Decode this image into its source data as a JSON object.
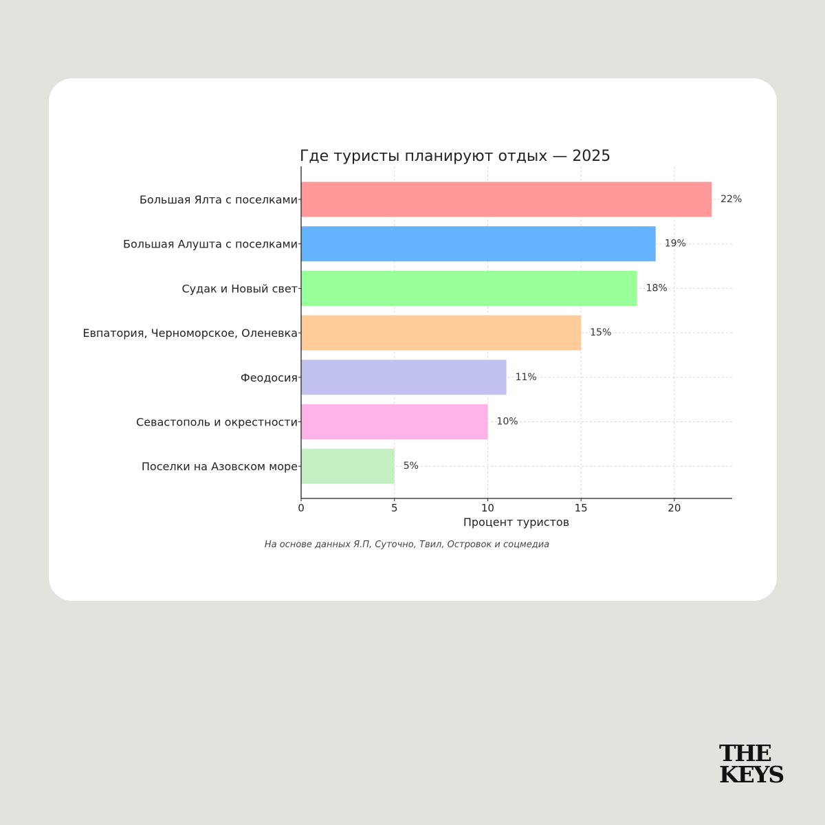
{
  "chart_data": {
    "type": "bar",
    "orientation": "horizontal",
    "title": "Где туристы планируют отдых — 2025",
    "xlabel": "Процент туристов",
    "ylabel": "",
    "categories": [
      "Большая Ялта с поселками",
      "Большая Алушта с поселками",
      "Судак и Новый свет",
      "Евпатория, Черноморское, Оленевка",
      "Феодосия",
      "Севастополь и окрестности",
      "Поселки на Азовском море"
    ],
    "values": [
      22,
      19,
      18,
      15,
      11,
      10,
      5
    ],
    "data_labels": [
      "22%",
      "19%",
      "18%",
      "15%",
      "11%",
      "10%",
      "5%"
    ],
    "colors": [
      "#ff9999",
      "#66b3ff",
      "#99ff99",
      "#ffcc99",
      "#c2c2f0",
      "#ffb3e6",
      "#c2f0c2"
    ],
    "xlim": [
      0,
      23.1
    ],
    "xticks": [
      0,
      5,
      10,
      15,
      20
    ],
    "grid": true,
    "source_note": "На основе данных Я.П, Суточно, Твил, Островок и соцмедиа"
  },
  "brand": {
    "line1": "THE",
    "line2": "KEYS"
  }
}
